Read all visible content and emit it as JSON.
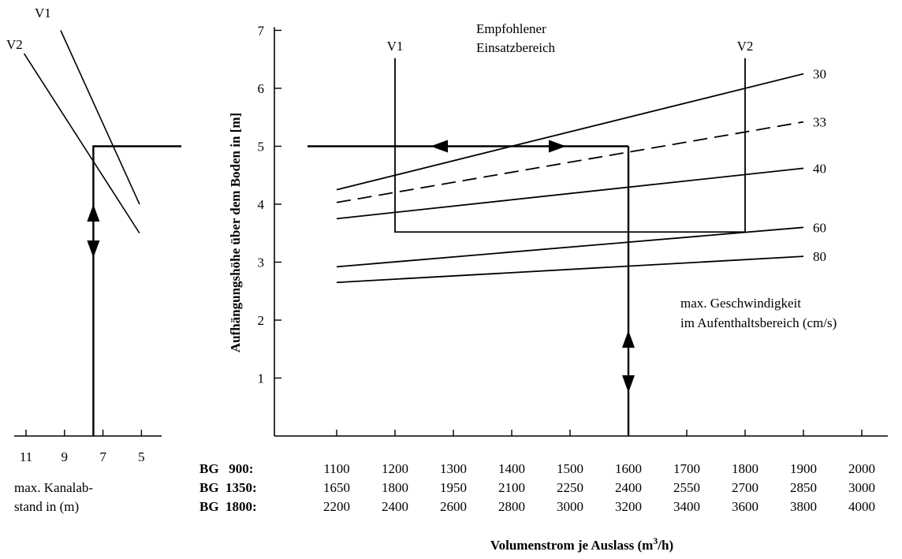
{
  "chart_data": {
    "type": "line",
    "title": "",
    "xlabel": "Volumenstrom je Auslass (m³/h)",
    "ylabel": "Aufhängungshöhe über dem Boden in [m]",
    "ylim": [
      0,
      7
    ],
    "yticks": [
      1,
      2,
      3,
      4,
      5,
      6,
      7
    ],
    "x_axis_rows": [
      {
        "label": "BG   900:",
        "values": [
          1100,
          1200,
          1300,
          1400,
          1500,
          1600,
          1700,
          1800,
          1900,
          2000
        ]
      },
      {
        "label": "BG  1350:",
        "values": [
          1650,
          1800,
          1950,
          2100,
          2250,
          2400,
          2550,
          2700,
          2850,
          3000
        ]
      },
      {
        "label": "BG  1800:",
        "values": [
          2200,
          2400,
          2600,
          2800,
          3000,
          3200,
          3400,
          3600,
          3800,
          4000
        ]
      }
    ],
    "xlim_bg900": [
      1050,
      2050
    ],
    "series": [
      {
        "name": "30",
        "dashed": false,
        "x": [
          1100,
          1900
        ],
        "y": [
          4.25,
          6.25
        ]
      },
      {
        "name": "33",
        "dashed": true,
        "x": [
          1100,
          1900
        ],
        "y": [
          4.03,
          5.42
        ]
      },
      {
        "name": "40",
        "dashed": false,
        "x": [
          1100,
          1900
        ],
        "y": [
          3.75,
          4.62
        ]
      },
      {
        "name": "60",
        "dashed": false,
        "x": [
          1100,
          1900
        ],
        "y": [
          2.92,
          3.6
        ]
      },
      {
        "name": "80",
        "dashed": false,
        "x": [
          1100,
          1900
        ],
        "y": [
          2.65,
          3.1
        ]
      }
    ],
    "series_note": [
      "max. Geschwindigkeit",
      "im Aufenthaltsbereich (cm/s)"
    ],
    "region": {
      "title": [
        "Empfohlener",
        "Einsatzbereich"
      ],
      "v1_label": "V1",
      "v2_label": "V2",
      "v1_x": 1200,
      "v2_x": 1800,
      "bottom_y": 3.52,
      "v1_top_y": 6.52,
      "v2_top_y": 6.52
    },
    "example": {
      "x": 1600,
      "y": 5.0
    },
    "left_chart": {
      "xlabel": [
        "max. Kanalab-",
        "stand in (m)"
      ],
      "xticks": [
        11,
        9,
        7,
        5
      ],
      "lines": [
        {
          "name": "V1",
          "x": [
            9.2,
            5.1
          ],
          "y": [
            7.0,
            4.0
          ]
        },
        {
          "name": "V2",
          "x": [
            11.1,
            5.1
          ],
          "y": [
            6.6,
            3.5
          ]
        }
      ],
      "example_x": 7.5
    }
  }
}
